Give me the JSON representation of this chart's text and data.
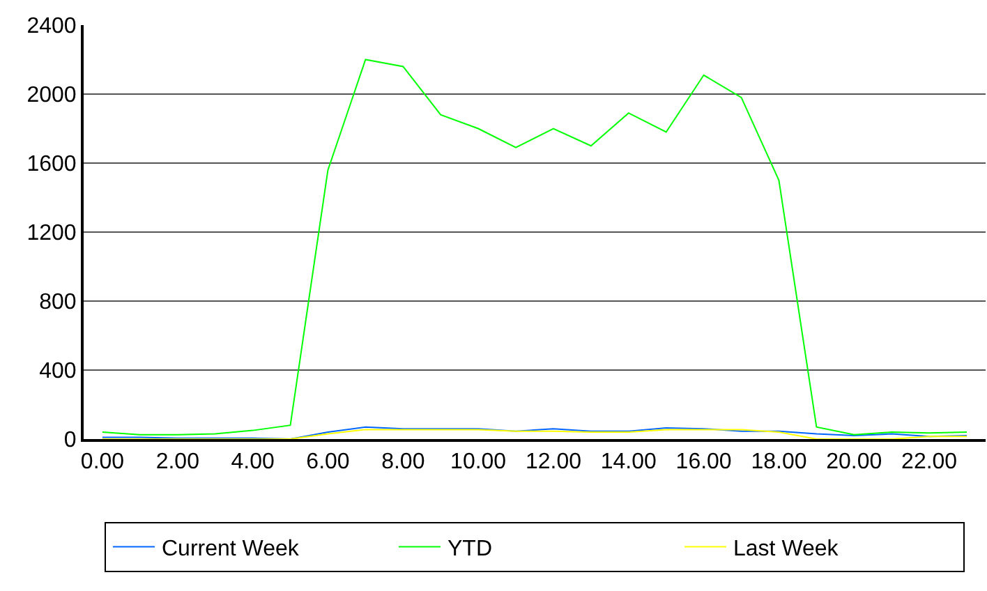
{
  "chart_data": {
    "type": "line",
    "categories": [
      "0.00",
      null,
      "2.00",
      null,
      "4.00",
      null,
      "6.00",
      null,
      "8.00",
      null,
      "10.00",
      null,
      "12.00",
      null,
      "14.00",
      null,
      "16.00",
      null,
      "18.00",
      null,
      "20.00",
      null,
      "22.00",
      null
    ],
    "ylim": [
      0,
      2400
    ],
    "yticks": [
      0,
      400,
      800,
      1200,
      1600,
      2000,
      2400
    ],
    "grid": "y",
    "legend": "bottom",
    "series": [
      {
        "name": "Current Week",
        "color": "#0066ff",
        "values": [
          10,
          10,
          5,
          5,
          5,
          0,
          40,
          70,
          60,
          60,
          60,
          45,
          60,
          45,
          45,
          65,
          60,
          45,
          45,
          30,
          20,
          30,
          15,
          20
        ]
      },
      {
        "name": "YTD",
        "color": "#00ff00",
        "values": [
          40,
          25,
          25,
          30,
          50,
          80,
          1560,
          2200,
          2160,
          1880,
          1800,
          1690,
          1800,
          1700,
          1890,
          1780,
          2110,
          1980,
          1500,
          70,
          25,
          40,
          35,
          40
        ]
      },
      {
        "name": "Last Week",
        "color": "#ffff00",
        "values": [
          0,
          0,
          0,
          0,
          0,
          0,
          30,
          55,
          55,
          55,
          55,
          45,
          45,
          40,
          40,
          55,
          55,
          55,
          40,
          0,
          0,
          0,
          15,
          15
        ]
      }
    ]
  }
}
